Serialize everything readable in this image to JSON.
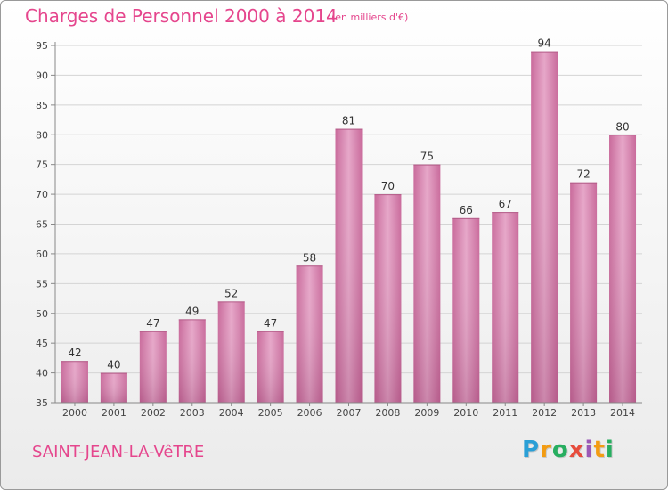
{
  "header": {
    "title": "Charges de Personnel 2000 à 2014",
    "subtitle": "(en milliers d'€)"
  },
  "footer": {
    "commune": "SAINT-JEAN-LA-VêTRE",
    "logo": {
      "letters": [
        "P",
        "r",
        "o",
        "x",
        "i",
        "t",
        "i"
      ],
      "colors": [
        "#2a9fd6",
        "#f39c12",
        "#27ae60",
        "#e74c3c",
        "#9b59b6",
        "#f39c12",
        "#27ae60"
      ]
    }
  },
  "chart_data": {
    "type": "bar",
    "categories": [
      "2000",
      "2001",
      "2002",
      "2003",
      "2004",
      "2005",
      "2006",
      "2007",
      "2008",
      "2009",
      "2010",
      "2011",
      "2012",
      "2013",
      "2014"
    ],
    "values": [
      42,
      40,
      47,
      49,
      52,
      47,
      58,
      81,
      70,
      75,
      66,
      67,
      94,
      72,
      80
    ],
    "ylim": [
      35,
      95
    ],
    "yticks": [
      35,
      40,
      45,
      50,
      55,
      60,
      65,
      70,
      75,
      80,
      85,
      90,
      95
    ],
    "grid": true,
    "bar_color": "#d77fac",
    "label_color": "#333333"
  }
}
